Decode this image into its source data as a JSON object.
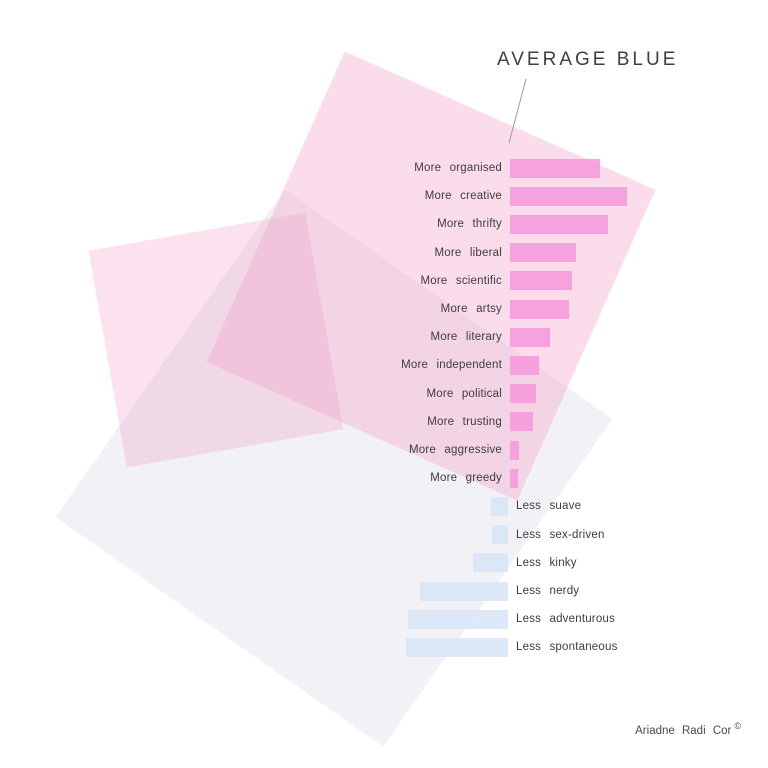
{
  "title": "AVERAGE BLUE",
  "footer": {
    "credit": "Ariadne Radi Cor",
    "symbol": "©"
  },
  "colors": {
    "more_bar": "rgba(247,150,221,0.85)",
    "less_bar": "rgba(213,226,246,0.80)",
    "more_bar_hex": "#f9a9e2",
    "less_bar_hex": "#dde8f6",
    "bg_pink_large": "#fbdeeb",
    "bg_pink_overlap": "#f6c8dc",
    "bg_gray": "#f2f2f6",
    "text": "#3d3d3d"
  },
  "chart_data": {
    "type": "bar",
    "orientation": "horizontal-diverging",
    "title": "AVERAGE BLUE",
    "xlabel": "",
    "ylabel": "",
    "axis_note": "no numeric axis shown; values estimated as bar length in screen pixels, positive = right (pink 'More'), negative = left (blue 'Less')",
    "grid": false,
    "legend": false,
    "categories": [
      "More organised",
      "More creative",
      "More thrifty",
      "More liberal",
      "More scientific",
      "More artsy",
      "More literary",
      "More independent",
      "More political",
      "More trusting",
      "More aggressive",
      "More greedy",
      "Less suave",
      "Less sex-driven",
      "Less kinky",
      "Less nerdy",
      "Less adventurous",
      "Less spontaneous"
    ],
    "values": [
      90,
      117,
      98,
      66,
      62,
      59,
      40,
      29,
      26,
      23,
      9,
      8,
      -17,
      -16,
      -35,
      -88,
      -100,
      -102
    ]
  }
}
